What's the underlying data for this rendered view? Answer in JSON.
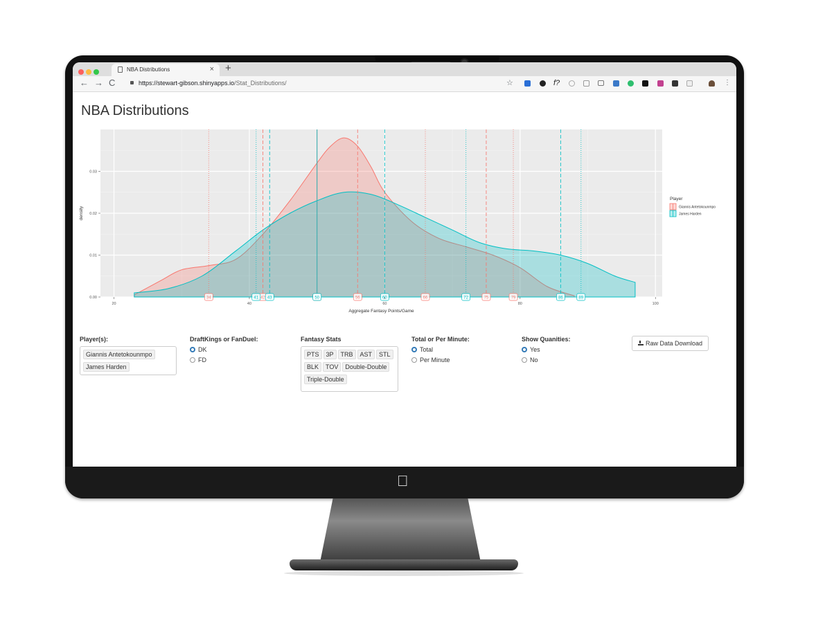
{
  "browser": {
    "tab_title": "NBA Distributions",
    "url_host": "https://stewart-gibson.shinyapps.io",
    "url_path": "/Stat_Distributions/",
    "new_tab": "+",
    "close": "×"
  },
  "page": {
    "title": "NBA Distributions"
  },
  "chart_data": {
    "type": "area",
    "xlabel": "Aggregate Fantasy Points/Game",
    "ylabel": "density",
    "xlim": [
      18,
      101
    ],
    "ylim": [
      0,
      0.04
    ],
    "x_ticks": [
      20,
      40,
      60,
      80,
      100
    ],
    "y_ticks": [
      0.0,
      0.01,
      0.02,
      0.03
    ],
    "y_tick_labels": [
      "0.00",
      "0.01",
      "0.02",
      "0.03"
    ],
    "grid": true,
    "legend": {
      "title": "Player",
      "position": "right"
    },
    "series": [
      {
        "name": "Giannis Antetokounmpo",
        "color": "#F8766D",
        "x": [
          23,
          27,
          30,
          34,
          38,
          42,
          46,
          50,
          52,
          54,
          56,
          58,
          60,
          64,
          68,
          72,
          76,
          80,
          84,
          88
        ],
        "y": [
          0.0005,
          0.004,
          0.0065,
          0.0075,
          0.009,
          0.015,
          0.023,
          0.032,
          0.036,
          0.038,
          0.036,
          0.031,
          0.025,
          0.018,
          0.014,
          0.012,
          0.01,
          0.007,
          0.0025,
          0.0003
        ],
        "quantiles": [
          34,
          42,
          50,
          56,
          66,
          75,
          79
        ],
        "quantile_labels": [
          "34",
          "42",
          "50",
          "56",
          "66",
          "75",
          "79"
        ]
      },
      {
        "name": "James Harden",
        "color": "#00BFC4",
        "x": [
          23,
          28,
          33,
          38,
          42,
          46,
          50,
          54,
          58,
          62,
          66,
          70,
          74,
          78,
          82,
          86,
          90,
          94,
          97
        ],
        "y": [
          0.001,
          0.002,
          0.005,
          0.011,
          0.016,
          0.02,
          0.023,
          0.025,
          0.0245,
          0.022,
          0.019,
          0.016,
          0.013,
          0.0115,
          0.011,
          0.01,
          0.008,
          0.005,
          0.0035
        ],
        "quantiles": [
          41,
          43,
          50,
          60,
          72,
          86,
          89
        ],
        "quantile_labels": [
          "41",
          "43",
          "50",
          "60",
          "72",
          "86",
          "89"
        ]
      }
    ]
  },
  "controls": {
    "players_label": "Player(s):",
    "players": [
      "Giannis Antetokounmpo",
      "James Harden"
    ],
    "site_label": "DraftKings or FanDuel:",
    "site_options": [
      "DK",
      "FD"
    ],
    "site_selected": "DK",
    "stats_label": "Fantasy Stats",
    "stats_row1": [
      "PTS",
      "3P",
      "TRB",
      "AST",
      "STL"
    ],
    "stats_row2": [
      "BLK",
      "TOV",
      "Double-Double"
    ],
    "stats_row3": [
      "Triple-Double"
    ],
    "total_label": "Total or Per Minute:",
    "total_options": [
      "Total",
      "Per Minute"
    ],
    "total_selected": "Total",
    "quant_label": "Show Quanities:",
    "quant_options": [
      "Yes",
      "No"
    ],
    "quant_selected": "Yes",
    "download_label": "Raw Data Download"
  }
}
